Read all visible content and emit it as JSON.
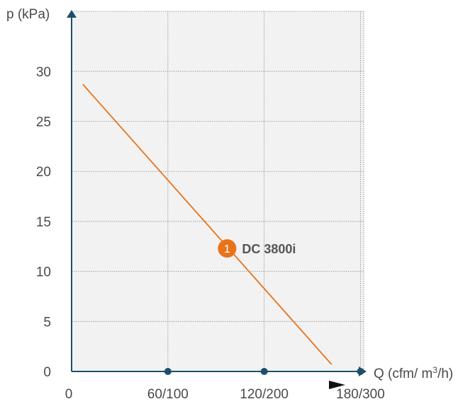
{
  "chart_data": {
    "type": "line",
    "title": "",
    "ylabel": "p (kPa)",
    "xlabel": "Q (cfm/ m³/h)",
    "ylim": [
      0,
      36
    ],
    "y_ticks": [
      0,
      5,
      10,
      15,
      20,
      25,
      30
    ],
    "x_ticks": [
      "0",
      "60/100",
      "120/200",
      "180/300"
    ],
    "x_tick_values": [
      0,
      60,
      120,
      180
    ],
    "xlim": [
      0,
      182
    ],
    "grid": true,
    "series": [
      {
        "name": "DC 3800i",
        "badge": "1",
        "color": "#e8731a",
        "x": [
          7,
          162
        ],
        "y": [
          28.7,
          0.7
        ]
      }
    ],
    "axis_color": "#1b4f6b",
    "background": "#f2f2f2"
  }
}
